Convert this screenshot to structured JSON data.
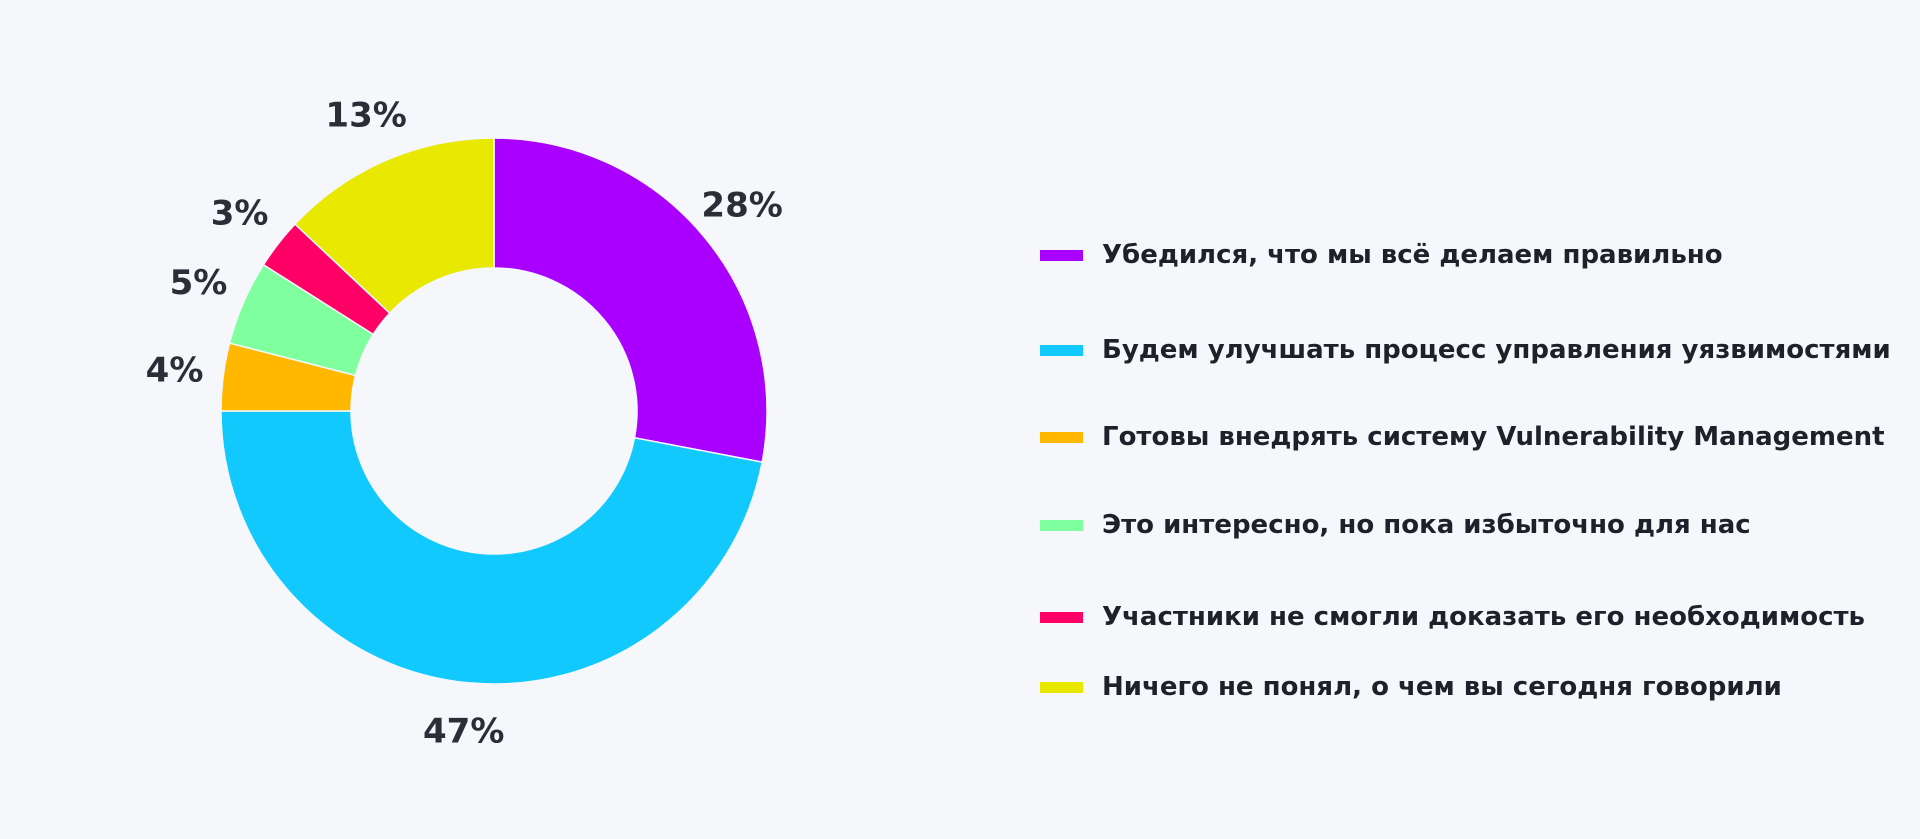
{
  "chart_data": {
    "type": "pie",
    "donut": true,
    "title": "",
    "legend_position": "right",
    "slices": [
      {
        "label": "Убедился, что мы всё делаем правильно",
        "value": 28,
        "value_label": "28%",
        "color": "#aa00ff"
      },
      {
        "label": "Будем улучшать процесс управления уязвимостями",
        "value": 47,
        "value_label": "47%",
        "color": "#11c9fc"
      },
      {
        "label": "Готовы внедрять систему Vulnerability Management",
        "value": 4,
        "value_label": "4%",
        "color": "#ffb700"
      },
      {
        "label": "Это интересно, но пока избыточно для нас",
        "value": 5,
        "value_label": "5%",
        "color": "#80ff9e"
      },
      {
        "label": "Участники не смогли доказать его необходимость",
        "value": 3,
        "value_label": "3%",
        "color": "#ff0066"
      },
      {
        "label": "Ничего не понял, о чем вы сегодня говорили",
        "value": 13,
        "value_label": "13%",
        "color": "#e8e800"
      }
    ]
  }
}
